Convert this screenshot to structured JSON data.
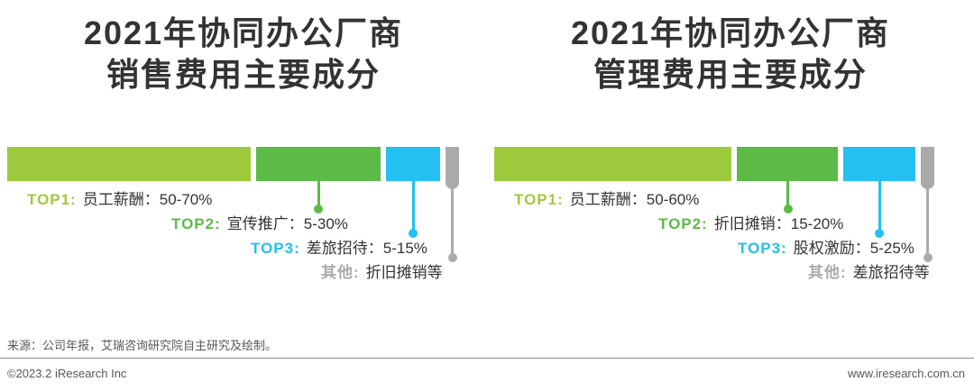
{
  "charts": [
    {
      "title_line1": "2021年协同办公厂商",
      "title_line2": "销售费用主要成分",
      "items": [
        {
          "rank": "TOP1:",
          "label": "员工薪酬：50-70%",
          "color": "#9dca3c",
          "width_pct": 54
        },
        {
          "rank": "TOP2:",
          "label": "宣传推广：5-30%",
          "color": "#5cbb46",
          "width_pct": 27.5
        },
        {
          "rank": "TOP3:",
          "label": "差旅招待：5-15%",
          "color": "#23c0f0",
          "width_pct": 12
        },
        {
          "rank": "其他:",
          "label": "折旧摊销等",
          "color": "#aaaaaa",
          "width_pct": 3
        }
      ]
    },
    {
      "title_line1": "2021年协同办公厂商",
      "title_line2": "管理费用主要成分",
      "items": [
        {
          "rank": "TOP1:",
          "label": "员工薪酬：50-60%",
          "color": "#9dca3c",
          "width_pct": 52.5
        },
        {
          "rank": "TOP2:",
          "label": "折旧摊销：15-20%",
          "color": "#5cbb46",
          "width_pct": 22.5
        },
        {
          "rank": "TOP3:",
          "label": "股权激励：5-25%",
          "color": "#23c0f0",
          "width_pct": 16
        },
        {
          "rank": "其他:",
          "label": "差旅招待等",
          "color": "#aaaaaa",
          "width_pct": 3
        }
      ]
    }
  ],
  "footer": {
    "source": "来源：公司年报，艾瑞咨询研究院自主研究及绘制。",
    "copyright": "©2023.2 iResearch Inc",
    "website": "www.iresearch.com.cn"
  },
  "chart_data": [
    {
      "type": "bar",
      "title": "2021年协同办公厂商销售费用主要成分",
      "orientation": "horizontal-stacked",
      "grid": false,
      "legend_position": "below",
      "segments": [
        {
          "rank": "TOP1",
          "category": "员工薪酬",
          "range": "50-70%",
          "range_min": 50,
          "range_max": 70,
          "color": "#9dca3c"
        },
        {
          "rank": "TOP2",
          "category": "宣传推广",
          "range": "5-30%",
          "range_min": 5,
          "range_max": 30,
          "color": "#5cbb46"
        },
        {
          "rank": "TOP3",
          "category": "差旅招待",
          "range": "5-15%",
          "range_min": 5,
          "range_max": 15,
          "color": "#23c0f0"
        },
        {
          "rank": "其他",
          "category": "折旧摊销等",
          "range": null,
          "color": "#aaaaaa"
        }
      ]
    },
    {
      "type": "bar",
      "title": "2021年协同办公厂商管理费用主要成分",
      "orientation": "horizontal-stacked",
      "grid": false,
      "legend_position": "below",
      "segments": [
        {
          "rank": "TOP1",
          "category": "员工薪酬",
          "range": "50-60%",
          "range_min": 50,
          "range_max": 60,
          "color": "#9dca3c"
        },
        {
          "rank": "TOP2",
          "category": "折旧摊销",
          "range": "15-20%",
          "range_min": 15,
          "range_max": 20,
          "color": "#5cbb46"
        },
        {
          "rank": "TOP3",
          "category": "股权激励",
          "range": "5-25%",
          "range_min": 5,
          "range_max": 25,
          "color": "#23c0f0"
        },
        {
          "rank": "其他",
          "category": "差旅招待等",
          "range": null,
          "color": "#aaaaaa"
        }
      ]
    }
  ]
}
